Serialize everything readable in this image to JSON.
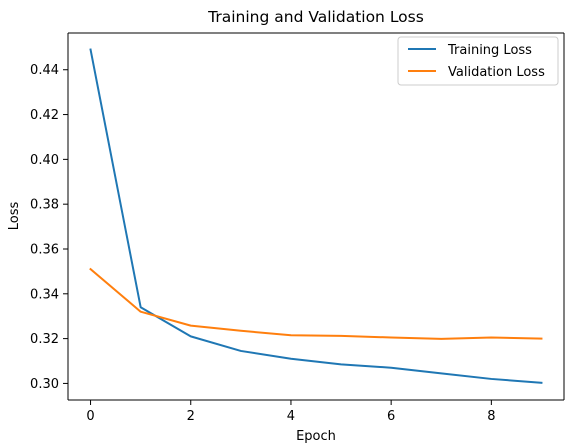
{
  "chart_data": {
    "type": "line",
    "title": "Training and Validation Loss",
    "xlabel": "Epoch",
    "ylabel": "Loss",
    "x": [
      0,
      1,
      2,
      3,
      4,
      5,
      6,
      7,
      8,
      9
    ],
    "xlim": [
      -0.45,
      9.45
    ],
    "ylim": [
      0.2926,
      0.4564
    ],
    "xticks": [
      0,
      2,
      4,
      6,
      8
    ],
    "xtick_labels": [
      "0",
      "2",
      "4",
      "6",
      "8"
    ],
    "yticks": [
      0.3,
      0.32,
      0.34,
      0.36,
      0.38,
      0.4,
      0.42,
      0.44
    ],
    "ytick_labels": [
      "0.30",
      "0.32",
      "0.34",
      "0.36",
      "0.38",
      "0.40",
      "0.42",
      "0.44"
    ],
    "grid": false,
    "legend_position": "top-right",
    "series": [
      {
        "name": "Training Loss",
        "color": "#1f77b4",
        "values": [
          0.449,
          0.334,
          0.321,
          0.3145,
          0.311,
          0.3085,
          0.307,
          0.3045,
          0.302,
          0.3003
        ]
      },
      {
        "name": "Validation Loss",
        "color": "#ff7f0e",
        "values": [
          0.351,
          0.332,
          0.3258,
          0.3235,
          0.3215,
          0.3212,
          0.3205,
          0.3199,
          0.3205,
          0.32
        ]
      }
    ]
  }
}
